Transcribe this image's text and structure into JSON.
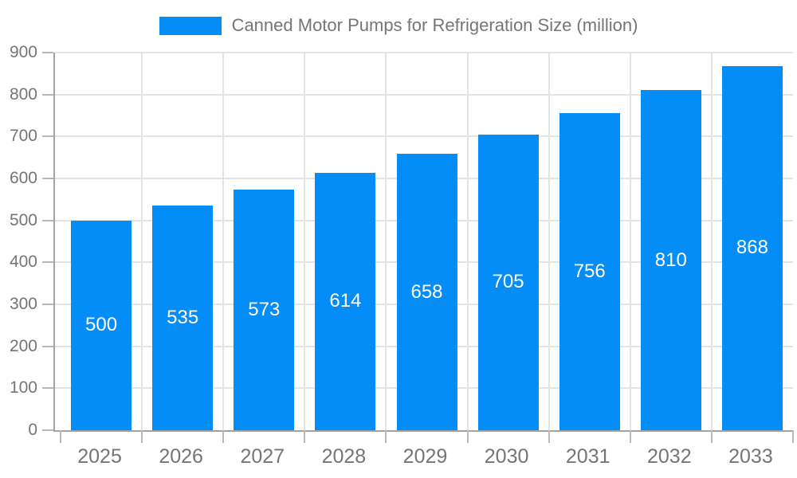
{
  "chart_data": {
    "type": "bar",
    "legend": "Canned Motor Pumps for Refrigeration Size (million)",
    "legend_position": "top-center",
    "categories": [
      "2025",
      "2026",
      "2027",
      "2028",
      "2029",
      "2030",
      "2031",
      "2032",
      "2033"
    ],
    "values": [
      500,
      535,
      573,
      614,
      658,
      705,
      756,
      810,
      868
    ],
    "yticks": [
      0,
      100,
      200,
      300,
      400,
      500,
      600,
      700,
      800,
      900
    ],
    "ylim": [
      0,
      900
    ],
    "xlabel": "",
    "ylabel": "",
    "grid": true,
    "bar_labels_shown": true,
    "colors": {
      "bar": "#058df7",
      "bar_label": "#ffffff",
      "axis_text": "#757575",
      "gridline": "#e4e4e4",
      "axis_line": "#a2a2a2",
      "tick": "#b8b8b8"
    }
  }
}
